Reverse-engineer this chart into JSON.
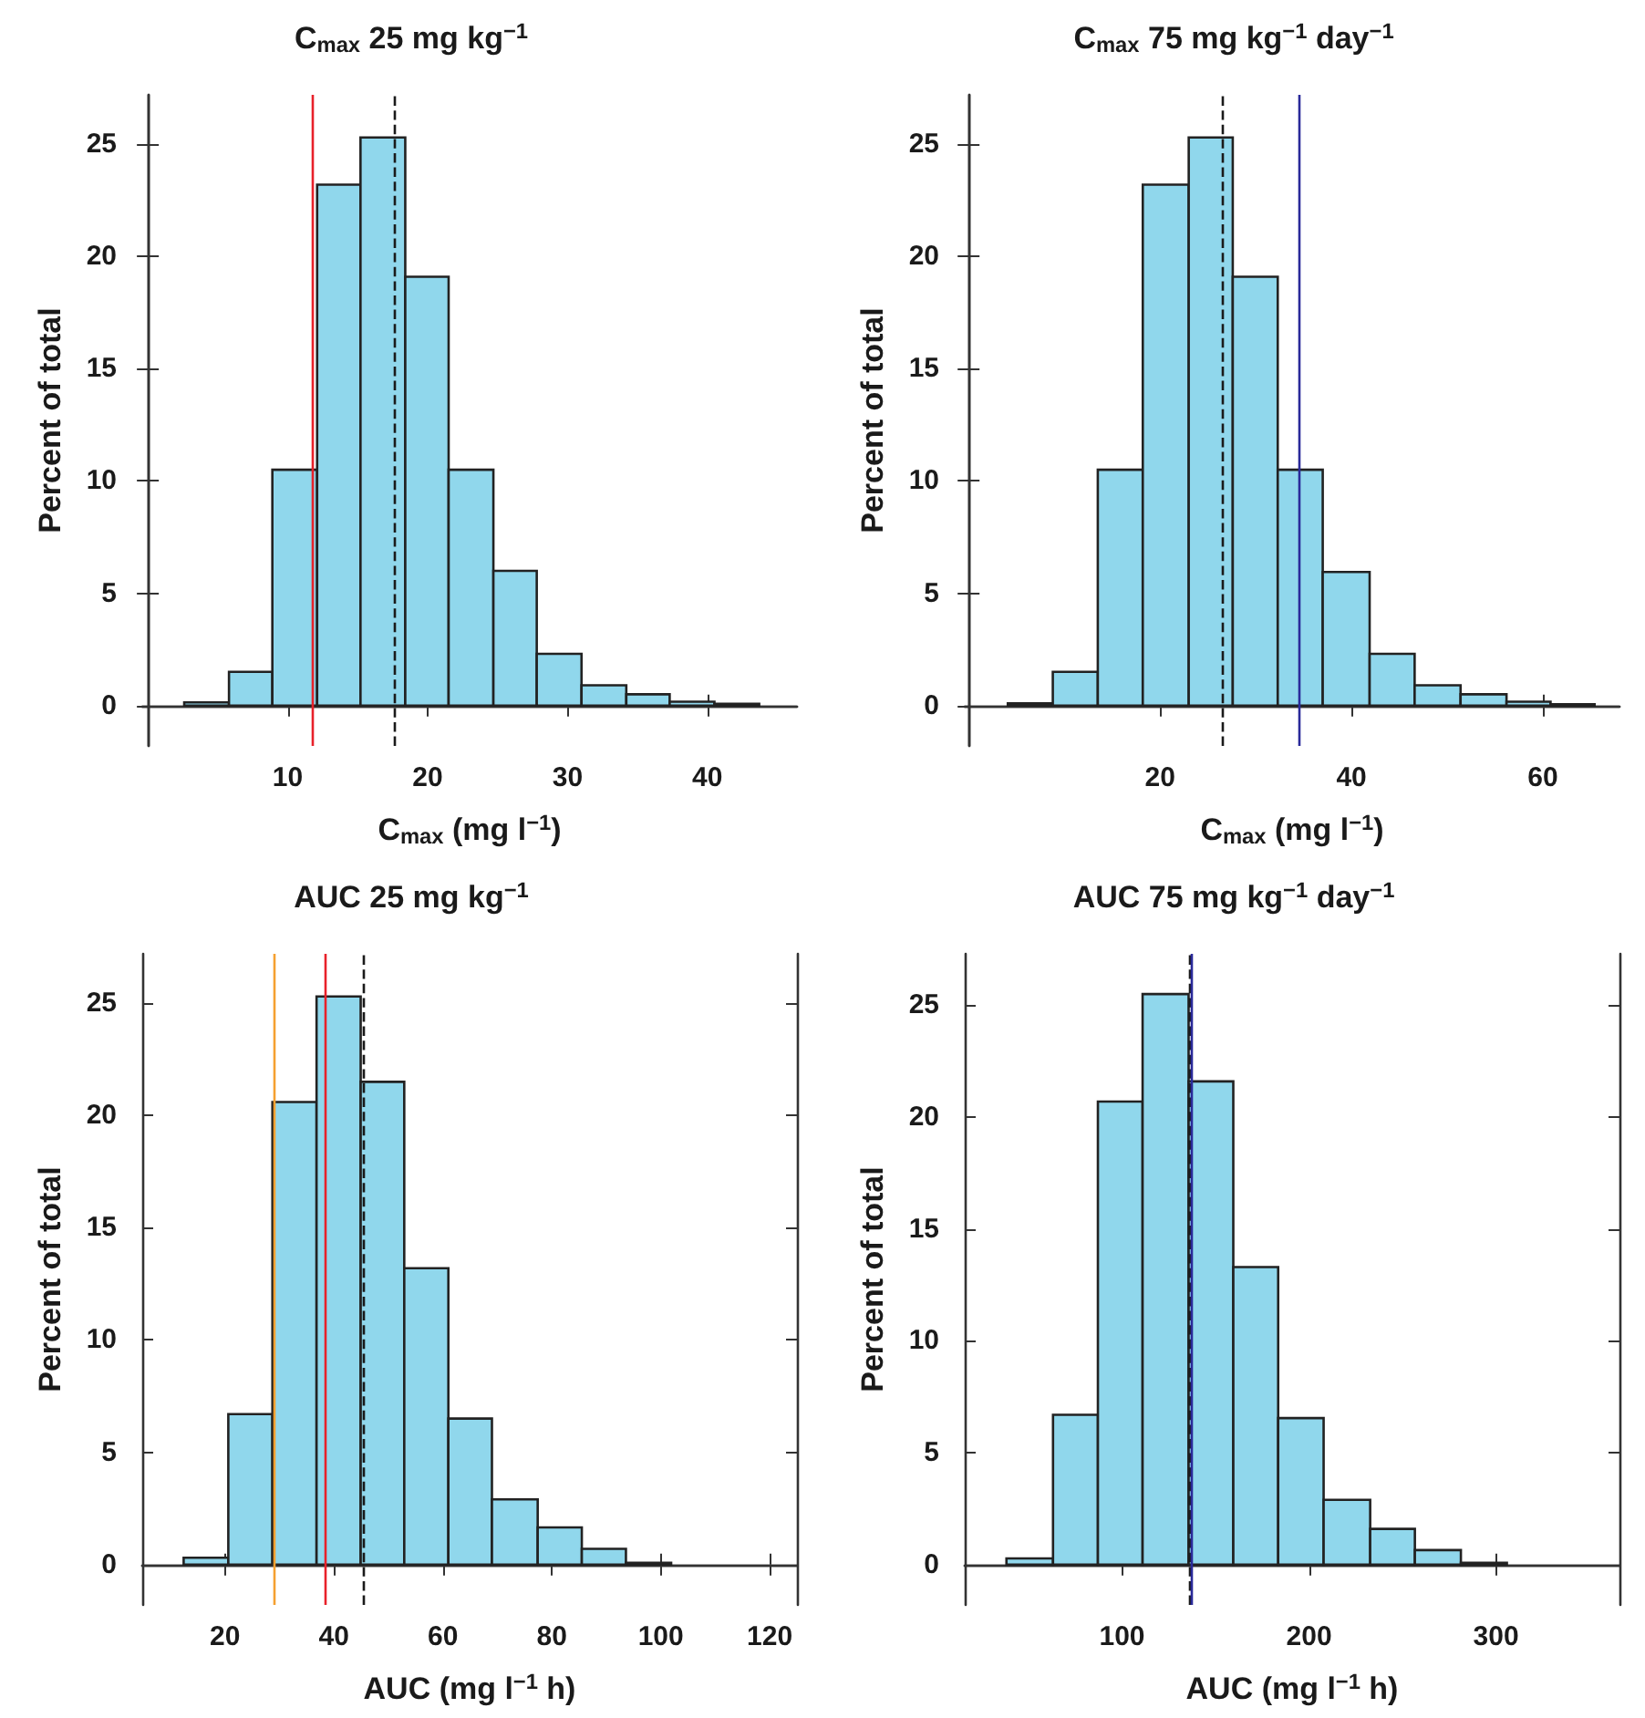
{
  "chart_data": [
    {
      "type": "histogram",
      "title": "C$_{max}$ 25 mg kg$^{−1}$",
      "xlabel": "C$_{max}$ (mg l$^{−1}$)",
      "ylabel": "Percent of total",
      "color": "#90d7ec",
      "bins": [
        2.6,
        5.8,
        8.9,
        12.1,
        15.2,
        18.4,
        21.5,
        24.7,
        27.8,
        31.0,
        34.2,
        37.3,
        40.5,
        43.7
      ],
      "values": [
        0.14,
        1.5,
        10.5,
        23.2,
        25.3,
        19.1,
        10.5,
        6.0,
        2.3,
        0.9,
        0.5,
        0.17,
        0.08
      ],
      "xlim": [
        -0.4,
        46.4
      ],
      "xticks": [
        10,
        20,
        30,
        40
      ],
      "ylim": [
        -1.8,
        27.2
      ],
      "yticks": [
        0,
        5,
        10,
        15,
        20,
        25
      ],
      "grid": false,
      "ref_lines": [
        {
          "axis": "x",
          "value": 11.8,
          "color": "#e8212a",
          "line_style": "solid"
        },
        {
          "axis": "x",
          "value": 17.6,
          "color": "#1a1a1a",
          "line_style": "dashed"
        }
      ]
    },
    {
      "type": "histogram",
      "title": "C$_{max}$ 75 mg kg$^{−1}$ day$^{−1}$",
      "xlabel": "C$_{max}$ (mg l$^{−1}$)",
      "ylabel": "Percent of total",
      "color": "#90d7ec",
      "bins": [
        4.1,
        8.8,
        13.5,
        18.2,
        23.0,
        27.6,
        32.3,
        37.0,
        41.9,
        46.6,
        51.4,
        56.2,
        60.8,
        65.4
      ],
      "values": [
        0.1,
        1.5,
        10.5,
        23.2,
        25.3,
        19.1,
        10.5,
        5.95,
        2.3,
        0.9,
        0.5,
        0.17,
        0.06
      ],
      "xlim": [
        -0.4,
        68
      ],
      "xticks": [
        20,
        40,
        60
      ],
      "ylim": [
        -1.8,
        27.2
      ],
      "yticks": [
        0,
        5,
        10,
        15,
        20,
        25
      ],
      "grid": false,
      "ref_lines": [
        {
          "axis": "x",
          "value": 26.5,
          "color": "#1a1a1a",
          "line_style": "dashed"
        },
        {
          "axis": "x",
          "value": 34.6,
          "color": "#2a2a9a",
          "line_style": "solid"
        }
      ]
    },
    {
      "type": "histogram",
      "title": "AUC 25 mg kg$^{−1}$",
      "xlabel": "AUC (mg l$^{−1}$ h)",
      "ylabel": "Percent of total",
      "color": "#90d7ec",
      "bins": [
        12.4,
        20.6,
        28.7,
        36.8,
        44.9,
        52.9,
        61.0,
        69.0,
        77.4,
        85.5,
        93.6,
        101.9
      ],
      "values": [
        0.3,
        6.7,
        20.6,
        25.3,
        21.5,
        13.2,
        6.5,
        2.9,
        1.65,
        0.7,
        0.08
      ],
      "xlim": [
        4.8,
        125
      ],
      "xticks": [
        20,
        40,
        60,
        80,
        100,
        120
      ],
      "ylim": [
        -1.8,
        27.2
      ],
      "yticks": [
        0,
        5,
        10,
        15,
        20,
        25
      ],
      "grid": false,
      "ref_lines": [
        {
          "axis": "x",
          "value": 29.0,
          "color": "#f5a030",
          "line_style": "solid"
        },
        {
          "axis": "x",
          "value": 38.4,
          "color": "#e8212a",
          "line_style": "solid"
        },
        {
          "axis": "x",
          "value": 45.3,
          "color": "#1a1a1a",
          "line_style": "dashed"
        }
      ]
    },
    {
      "type": "histogram",
      "title": "AUC 75 mg kg$^{−1}$ day$^{−1}$",
      "xlabel": "AUC (mg l$^{−1}$ h)",
      "ylabel": "Percent of total",
      "color": "#90d7ec",
      "bins": [
        38.2,
        63.1,
        87.1,
        111.0,
        135.6,
        159.5,
        183.5,
        207.8,
        232.7,
        256.6,
        281.2,
        305.8
      ],
      "values": [
        0.28,
        6.7,
        20.7,
        25.5,
        21.6,
        13.3,
        6.55,
        2.9,
        1.6,
        0.65,
        0.08
      ],
      "xlim": [
        15.9,
        366
      ],
      "xticks": [
        100,
        200,
        300
      ],
      "ylim": [
        -1.8,
        27.3
      ],
      "yticks": [
        0,
        5,
        10,
        15,
        20,
        25
      ],
      "grid": false,
      "ref_lines": [
        {
          "axis": "x",
          "value": 135.9,
          "color": "#1a1a1a",
          "line_style": "dashed"
        },
        {
          "axis": "x",
          "value": 137.5,
          "color": "#2a2a9a",
          "line_style": "solid"
        }
      ]
    }
  ]
}
